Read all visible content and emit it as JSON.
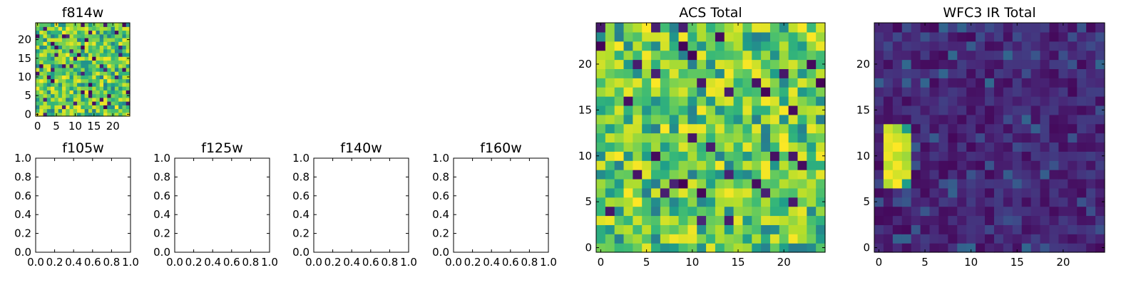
{
  "chart_data": [
    {
      "type": "heatmap",
      "title": "f814w",
      "grid_size": 25,
      "xlim": [
        -0.5,
        24.5
      ],
      "ylim": [
        -0.5,
        24.5
      ],
      "x_ticks": [
        0,
        5,
        10,
        15,
        20
      ],
      "y_ticks": [
        0,
        5,
        10,
        15,
        20
      ],
      "colormap": "viridis",
      "value_range": [
        0,
        1
      ],
      "value_description": "random field, mostly high values (green-yellow) with scattered low pixels"
    },
    {
      "type": "empty",
      "title": "f105w",
      "xlim": [
        0,
        1
      ],
      "ylim": [
        0,
        1
      ],
      "x_ticks": [
        "0.0",
        "0.2",
        "0.4",
        "0.6",
        "0.8",
        "1.0"
      ],
      "y_ticks": [
        "0.0",
        "0.2",
        "0.4",
        "0.6",
        "0.8",
        "1.0"
      ]
    },
    {
      "type": "empty",
      "title": "f125w",
      "xlim": [
        0,
        1
      ],
      "ylim": [
        0,
        1
      ],
      "x_ticks": [
        "0.0",
        "0.2",
        "0.4",
        "0.6",
        "0.8",
        "1.0"
      ],
      "y_ticks": [
        "0.0",
        "0.2",
        "0.4",
        "0.6",
        "0.8",
        "1.0"
      ]
    },
    {
      "type": "empty",
      "title": "f140w",
      "xlim": [
        0,
        1
      ],
      "ylim": [
        0,
        1
      ],
      "x_ticks": [
        "0.0",
        "0.2",
        "0.4",
        "0.6",
        "0.8",
        "1.0"
      ],
      "y_ticks": [
        "0.0",
        "0.2",
        "0.4",
        "0.6",
        "0.8",
        "1.0"
      ]
    },
    {
      "type": "empty",
      "title": "f160w",
      "xlim": [
        0,
        1
      ],
      "ylim": [
        0,
        1
      ],
      "x_ticks": [
        "0.0",
        "0.2",
        "0.4",
        "0.6",
        "0.8",
        "1.0"
      ],
      "y_ticks": [
        "0.0",
        "0.2",
        "0.4",
        "0.6",
        "0.8",
        "1.0"
      ]
    },
    {
      "type": "heatmap",
      "title": "ACS Total",
      "grid_size": 25,
      "xlim": [
        -0.5,
        24.5
      ],
      "ylim": [
        -0.5,
        24.5
      ],
      "x_ticks": [
        0,
        5,
        10,
        15,
        20
      ],
      "y_ticks": [
        0,
        5,
        10,
        15,
        20
      ],
      "colormap": "viridis",
      "value_range": [
        0,
        1
      ],
      "value_description": "random field, mostly high values (green-yellow) with scattered low pixels"
    },
    {
      "type": "heatmap",
      "title": "WFC3 IR Total",
      "grid_size": 25,
      "xlim": [
        -0.5,
        24.5
      ],
      "ylim": [
        -0.5,
        24.5
      ],
      "x_ticks": [
        0,
        5,
        10,
        15,
        20
      ],
      "y_ticks": [
        0,
        5,
        10,
        15,
        20
      ],
      "colormap": "viridis",
      "value_range": [
        0,
        1
      ],
      "value_description": "mostly low values (dark purple) with a bright source near columns 1-3, rows 7-13",
      "bright_region": {
        "x": [
          1,
          3
        ],
        "y": [
          7,
          13
        ]
      }
    }
  ]
}
